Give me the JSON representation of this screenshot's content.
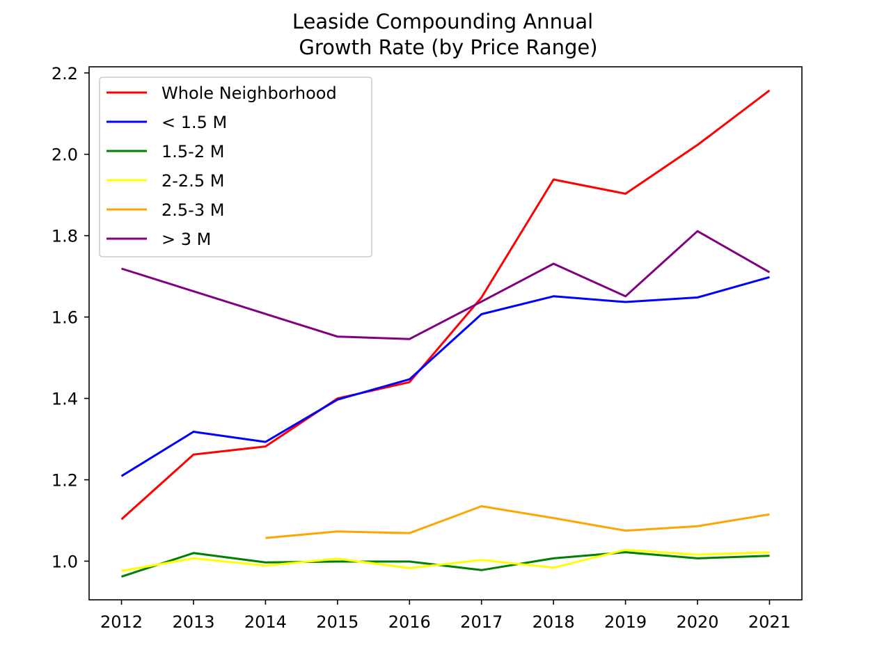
{
  "chart_data": {
    "type": "line",
    "title_lines": [
      "Leaside Compounding Annual",
      "Growth Rate (by Price Range)"
    ],
    "xlabel": "",
    "ylabel": "",
    "x": [
      2012,
      2013,
      2014,
      2015,
      2016,
      2017,
      2018,
      2019,
      2020,
      2021
    ],
    "xticks": [
      "2012",
      "2013",
      "2014",
      "2015",
      "2016",
      "2017",
      "2018",
      "2019",
      "2020",
      "2021"
    ],
    "yticks": [
      "1.0",
      "1.2",
      "1.4",
      "1.6",
      "1.8",
      "2.0",
      "2.2"
    ],
    "xlim": [
      2011.55,
      2021.45
    ],
    "ylim": [
      0.905,
      2.215
    ],
    "grid": false,
    "legend_position": "upper-left",
    "series": [
      {
        "name": "Whole Neighborhood",
        "color": "#ff0000",
        "values": [
          1.103,
          1.262,
          1.282,
          1.4,
          1.44,
          1.648,
          1.938,
          1.903,
          2.023,
          2.157
        ]
      },
      {
        "name": "< 1.5 M",
        "color": "#0000ff",
        "values": [
          1.209,
          1.318,
          1.293,
          1.397,
          1.447,
          1.607,
          1.651,
          1.637,
          1.648,
          1.698
        ]
      },
      {
        "name": "1.5-2 M",
        "color": "#008000",
        "values": [
          0.962,
          1.02,
          0.997,
          0.999,
          0.999,
          0.978,
          1.007,
          1.022,
          1.007,
          1.013
        ]
      },
      {
        "name": "2-2.5 M",
        "color": "#ffff00",
        "values": [
          0.976,
          1.007,
          0.989,
          1.006,
          0.983,
          1.003,
          0.984,
          1.028,
          1.016,
          1.022
        ]
      },
      {
        "name": "2.5-3 M",
        "color": "#ffa500",
        "values": [
          null,
          null,
          1.057,
          1.073,
          1.069,
          1.135,
          1.106,
          1.075,
          1.086,
          1.115
        ]
      },
      {
        "name": "> 3 M",
        "color": "#800080",
        "values": [
          1.719,
          null,
          null,
          1.552,
          1.546,
          1.638,
          1.731,
          1.651,
          1.811,
          1.71
        ]
      }
    ]
  }
}
